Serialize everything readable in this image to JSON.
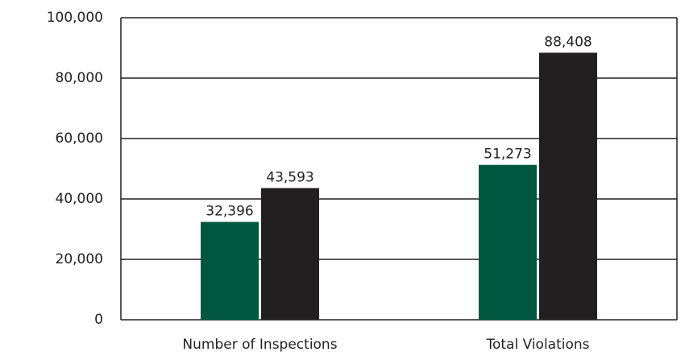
{
  "chart_data": {
    "type": "bar",
    "categories": [
      "Number of Inspections",
      "Total Violations"
    ],
    "series": [
      {
        "color": "#00573f",
        "values": [
          32396,
          51273
        ],
        "value_labels": [
          "32,396",
          "51,273"
        ]
      },
      {
        "color": "#231f20",
        "values": [
          43593,
          88408
        ],
        "value_labels": [
          "43,593",
          "88,408"
        ]
      }
    ],
    "ylim": [
      0,
      100000
    ],
    "yticks": [
      0,
      {
        "value": 20000,
        "label": "20,000"
      },
      {
        "value": 40000,
        "label": "40,000"
      },
      {
        "value": 60000,
        "label": "60,000"
      },
      {
        "value": 80000,
        "label": "80,000"
      },
      {
        "value": 100000,
        "label": "100,000"
      }
    ],
    "grid": true
  }
}
